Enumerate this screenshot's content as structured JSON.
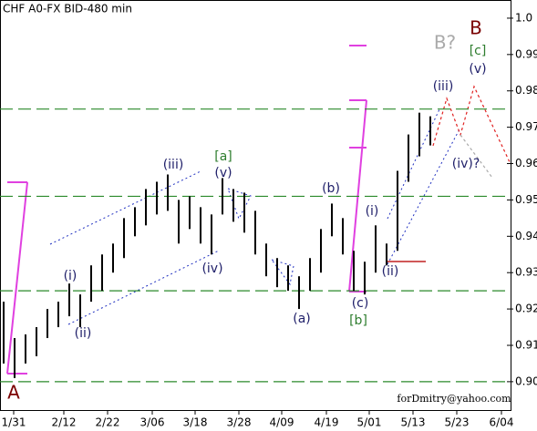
{
  "chart_data": {
    "type": "hl-bar",
    "title": "CHF A0-FX BID-480 min",
    "xlim": [
      0,
      560
    ],
    "xticks": [
      {
        "value": 15,
        "label": "1/31"
      },
      {
        "value": 70,
        "label": "2/12"
      },
      {
        "value": 118,
        "label": "2/22"
      },
      {
        "value": 167,
        "label": "3/06"
      },
      {
        "value": 214,
        "label": "3/18"
      },
      {
        "value": 262,
        "label": "3/28"
      },
      {
        "value": 309,
        "label": "4/09"
      },
      {
        "value": 358,
        "label": "4/19"
      },
      {
        "value": 405,
        "label": "5/01"
      },
      {
        "value": 453,
        "label": "5/13"
      },
      {
        "value": 501,
        "label": "5/23"
      },
      {
        "value": 550,
        "label": "6/04"
      }
    ],
    "ylim": [
      0.8922,
      1.005
    ],
    "yticks": [
      {
        "value": 0.9,
        "label": "0.90"
      },
      0.91,
      0.92,
      0.93,
      0.94,
      0.95,
      0.96,
      0.97,
      0.98,
      0.99,
      {
        "value": 1,
        "label": "1.0"
      }
    ],
    "levels": [
      0.975,
      0.951,
      0.925,
      0.9
    ],
    "level_color": "#2a8a2a",
    "series": [
      {
        "color": "#000000",
        "x": [
          4,
          16,
          28,
          40,
          52,
          64,
          76,
          88,
          100,
          112,
          124,
          136,
          148,
          160,
          172,
          184,
          196,
          208,
          220,
          232,
          244,
          256,
          268,
          280,
          292,
          304,
          316,
          328,
          340,
          352,
          364,
          376,
          388,
          400,
          412,
          424,
          436,
          448,
          460,
          472
        ],
        "high": [
          0.922,
          0.912,
          0.913,
          0.915,
          0.92,
          0.922,
          0.927,
          0.924,
          0.932,
          0.935,
          0.938,
          0.945,
          0.948,
          0.953,
          0.955,
          0.957,
          0.95,
          0.951,
          0.948,
          0.946,
          0.956,
          0.953,
          0.952,
          0.947,
          0.938,
          0.934,
          0.932,
          0.929,
          0.934,
          0.942,
          0.949,
          0.945,
          0.936,
          0.933,
          0.943,
          0.938,
          0.958,
          0.968,
          0.974,
          0.973
        ],
        "low": [
          0.905,
          0.901,
          0.905,
          0.907,
          0.912,
          0.915,
          0.918,
          0.915,
          0.922,
          0.925,
          0.93,
          0.934,
          0.94,
          0.943,
          0.946,
          0.947,
          0.938,
          0.942,
          0.938,
          0.935,
          0.946,
          0.944,
          0.941,
          0.935,
          0.929,
          0.926,
          0.925,
          0.92,
          0.925,
          0.93,
          0.94,
          0.935,
          0.925,
          0.924,
          0.93,
          0.932,
          0.936,
          0.955,
          0.962,
          0.965
        ]
      }
    ],
    "annotations": [
      "A",
      "B",
      "B?",
      "[c]",
      "(v)",
      "(iii)",
      "(iv)?",
      "(i)",
      "(ii)",
      "(b)",
      "(a)",
      "(c)",
      "[b]",
      "[a]",
      "(v)",
      "(iii)",
      "(iv)",
      "(i)",
      "(ii)",
      "forDmitry@yahoo.com"
    ]
  }
}
